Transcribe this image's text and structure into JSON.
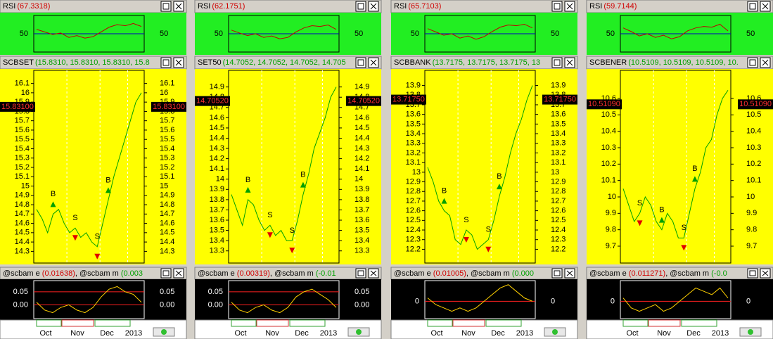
{
  "panels": [
    {
      "rsi": {
        "title": "RSI",
        "reading": "(67.3318)",
        "ylim": [
          0,
          100
        ],
        "yticks": [
          50
        ],
        "values": [
          62,
          55,
          48,
          52,
          40,
          45,
          38,
          42,
          55,
          68,
          75,
          72,
          78,
          70
        ]
      },
      "main": {
        "title": "SCBSET",
        "reading": "(15.8310, 15.8310, 15.8310, 15.8",
        "price_label": "15.83100",
        "ylim": [
          14.25,
          16.15
        ],
        "yticks": [
          14.3,
          14.4,
          14.5,
          14.6,
          14.7,
          14.8,
          14.9,
          15.0,
          15.1,
          15.2,
          15.3,
          15.4,
          15.5,
          15.6,
          15.7,
          15.8,
          15.9,
          16.0,
          16.1
        ],
        "values": [
          14.75,
          14.65,
          14.5,
          14.7,
          14.75,
          14.6,
          14.5,
          14.55,
          14.45,
          14.5,
          14.4,
          14.35,
          14.6,
          14.85,
          15.1,
          15.3,
          15.5,
          15.7,
          15.9,
          16.0
        ],
        "signals": [
          "B",
          "S",
          "S",
          "B"
        ]
      },
      "indicator": {
        "parts": [
          {
            "text": "@scbam e ",
            "color": "#000"
          },
          {
            "text": "(0.01638)",
            "color": "#d00000"
          },
          {
            "text": ", @scbam m ",
            "color": "#000"
          },
          {
            "text": "(0.003",
            "color": "#00a000"
          }
        ],
        "ylim": [
          -0.05,
          0.09
        ],
        "yticks": [
          0.05,
          {
            "value": 0,
            "label": "0.00"
          }
        ],
        "values": [
          0.01,
          -0.02,
          -0.03,
          -0.01,
          0.0,
          -0.02,
          -0.03,
          -0.01,
          0.03,
          0.06,
          0.07,
          0.05,
          0.04,
          0.01
        ]
      },
      "dates": [
        "Oct",
        "Nov",
        "Dec",
        "2013"
      ]
    },
    {
      "rsi": {
        "title": "RSI",
        "reading": "(62.1751)",
        "ylim": [
          0,
          100
        ],
        "yticks": [
          50
        ],
        "values": [
          60,
          52,
          45,
          50,
          40,
          44,
          36,
          40,
          55,
          66,
          72,
          70,
          74,
          62
        ]
      },
      "main": {
        "title": "SET50",
        "reading": "(14.7052, 14.7052, 14.7052, 14.705",
        "price_label": "14.70520",
        "ylim": [
          13.25,
          14.98
        ],
        "yticks": [
          13.3,
          13.4,
          13.5,
          13.6,
          13.7,
          13.8,
          13.9,
          14.0,
          14.1,
          14.2,
          14.3,
          14.4,
          14.5,
          14.6,
          14.7,
          14.8,
          14.9
        ],
        "values": [
          13.85,
          13.7,
          13.55,
          13.8,
          13.75,
          13.6,
          13.5,
          13.55,
          13.45,
          13.5,
          13.4,
          13.4,
          13.6,
          13.85,
          14.05,
          14.3,
          14.45,
          14.6,
          14.8,
          14.9
        ],
        "signals": [
          "B",
          "S",
          "S",
          "B"
        ]
      },
      "indicator": {
        "parts": [
          {
            "text": "@scbam e ",
            "color": "#000"
          },
          {
            "text": "(0.00319)",
            "color": "#d00000"
          },
          {
            "text": ", @scbam m ",
            "color": "#000"
          },
          {
            "text": "(-0.01",
            "color": "#00a000"
          }
        ],
        "ylim": [
          -0.05,
          0.09
        ],
        "yticks": [
          0.05,
          {
            "value": 0,
            "label": "0.00"
          }
        ],
        "values": [
          0.01,
          -0.02,
          -0.03,
          -0.01,
          0.0,
          -0.02,
          -0.03,
          -0.01,
          0.03,
          0.05,
          0.06,
          0.04,
          0.02,
          -0.01
        ]
      },
      "dates": [
        "Oct",
        "Nov",
        "Dec",
        "2013"
      ]
    },
    {
      "rsi": {
        "title": "RSI",
        "reading": "(65.7103)",
        "ylim": [
          0,
          100
        ],
        "yticks": [
          50
        ],
        "values": [
          64,
          55,
          46,
          50,
          38,
          44,
          35,
          42,
          56,
          68,
          74,
          72,
          76,
          66
        ]
      },
      "main": {
        "title": "SCBBANK",
        "reading": "(13.7175, 13.7175, 13.7175, 13",
        "price_label": "13.71750",
        "ylim": [
          12.13,
          13.97
        ],
        "yticks": [
          12.2,
          12.3,
          12.4,
          12.5,
          12.6,
          12.7,
          12.8,
          12.9,
          13.0,
          13.1,
          13.2,
          13.3,
          13.4,
          13.5,
          13.6,
          13.7,
          13.8,
          13.9
        ],
        "values": [
          13.05,
          12.9,
          12.7,
          12.6,
          12.55,
          12.3,
          12.25,
          12.4,
          12.35,
          12.2,
          12.25,
          12.3,
          12.5,
          12.75,
          12.95,
          13.2,
          13.4,
          13.55,
          13.75,
          13.9
        ],
        "signals": [
          "B",
          "S",
          "S",
          "B"
        ]
      },
      "indicator": {
        "parts": [
          {
            "text": "@scbam e ",
            "color": "#000"
          },
          {
            "text": "(0.01005)",
            "color": "#d00000"
          },
          {
            "text": ", @scbam m ",
            "color": "#000"
          },
          {
            "text": "(0.000",
            "color": "#00a000"
          }
        ],
        "ylim": [
          -0.05,
          0.06
        ],
        "yticks": [
          0
        ],
        "values": [
          0.01,
          -0.01,
          -0.02,
          -0.03,
          -0.02,
          -0.03,
          -0.02,
          0.0,
          0.02,
          0.04,
          0.05,
          0.03,
          0.01,
          0.0
        ]
      },
      "dates": [
        "Oct",
        "Nov",
        "Dec",
        "2013"
      ]
    },
    {
      "rsi": {
        "title": "RSI",
        "reading": "(59.7144)",
        "ylim": [
          0,
          100
        ],
        "yticks": [
          50
        ],
        "values": [
          66,
          56,
          44,
          50,
          40,
          46,
          36,
          42,
          58,
          66,
          70,
          68,
          76,
          58
        ]
      },
      "main": {
        "title": "SCBENER",
        "reading": "(10.5109, 10.5109, 10.5109, 10.",
        "price_label": "10.51090",
        "ylim": [
          9.64,
          10.72
        ],
        "yticks": [
          9.7,
          9.8,
          9.9,
          10.0,
          10.1,
          10.2,
          10.3,
          10.4,
          10.5,
          10.6
        ],
        "values": [
          10.05,
          9.95,
          9.85,
          9.9,
          10.0,
          9.95,
          9.85,
          9.8,
          9.9,
          9.85,
          9.75,
          9.75,
          9.9,
          10.05,
          10.15,
          10.3,
          10.35,
          10.5,
          10.6,
          10.65
        ],
        "signals": [
          "S",
          "B",
          "S",
          "B"
        ]
      },
      "indicator": {
        "parts": [
          {
            "text": "@scbam e ",
            "color": "#000"
          },
          {
            "text": "(0.011271)",
            "color": "#d00000"
          },
          {
            "text": ", @scbam m ",
            "color": "#000"
          },
          {
            "text": "(-0.0",
            "color": "#00a000"
          }
        ],
        "ylim": [
          -0.05,
          0.06
        ],
        "yticks": [
          0
        ],
        "values": [
          0.01,
          -0.02,
          -0.03,
          -0.02,
          -0.01,
          -0.03,
          -0.02,
          0.0,
          0.02,
          0.04,
          0.03,
          0.02,
          0.04,
          0.01
        ]
      },
      "dates": [
        "Oct",
        "Nov",
        "Dec",
        "2013"
      ]
    }
  ]
}
